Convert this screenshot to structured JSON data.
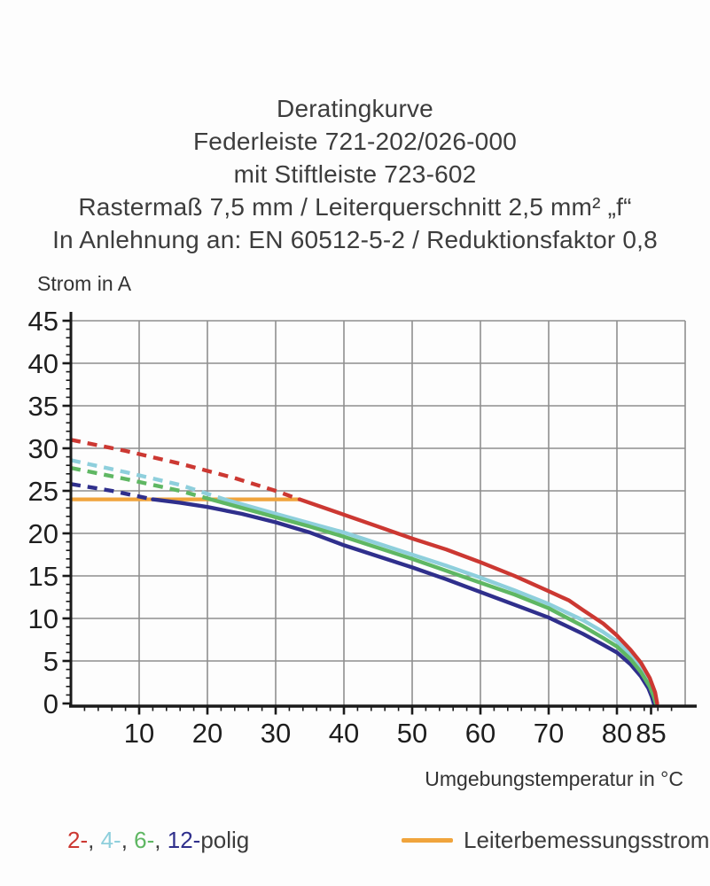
{
  "title": {
    "lines": [
      "Deratingkurve",
      "Federleiste 721-202/026-000",
      "mit Stiftleiste 723-602",
      "Rastermaß 7,5 mm / Leiterquerschnitt 2,5 mm² „f“",
      "In Anlehnung an: EN 60512-5-2 / Reduktionsfaktor 0,8"
    ]
  },
  "chart_data": {
    "type": "line",
    "title": "Deratingkurve",
    "xlabel": "Umgebungstemperatur in °C",
    "ylabel": "Strom in A",
    "xlim": [
      0,
      90
    ],
    "ylim": [
      0,
      45
    ],
    "grid": true,
    "x_major_ticks": [
      10,
      20,
      30,
      40,
      50,
      60,
      70,
      80,
      85
    ],
    "x_gridlines": [
      10,
      20,
      30,
      40,
      50,
      60,
      70,
      80,
      90
    ],
    "y_major_ticks": [
      0,
      5,
      10,
      15,
      20,
      25,
      30,
      35,
      40,
      45
    ],
    "x_minor_step": 2,
    "x_minor_max": 88,
    "y_minor_step": 1,
    "rated_line": {
      "label": "Leiterbemessungsstrom",
      "value": 24,
      "x_start": 0,
      "x_end": 33.5,
      "color": "#f0a43c"
    },
    "series": [
      {
        "name": "12-polig",
        "color": "#2f2f8c",
        "dashed": [
          [
            0,
            25.8
          ],
          [
            6,
            25.0
          ],
          [
            12,
            24
          ]
        ],
        "solid": [
          [
            12,
            24
          ],
          [
            16,
            23.6
          ],
          [
            20,
            23.1
          ],
          [
            25,
            22.3
          ],
          [
            30,
            21.3
          ],
          [
            35,
            20.1
          ],
          [
            40,
            18.6
          ],
          [
            45,
            17.3
          ],
          [
            50,
            16.0
          ],
          [
            55,
            14.6
          ],
          [
            60,
            13.1
          ],
          [
            65,
            11.6
          ],
          [
            70,
            10.1
          ],
          [
            75,
            8.2
          ],
          [
            78,
            6.9
          ],
          [
            80,
            6.0
          ],
          [
            82,
            4.6
          ],
          [
            83.5,
            3.2
          ],
          [
            84.6,
            1.8
          ],
          [
            85.1,
            0.8
          ],
          [
            85.4,
            0
          ]
        ]
      },
      {
        "name": "4-polig",
        "color": "#8ecfdc",
        "dashed": [
          [
            0,
            28.6
          ],
          [
            8,
            27.2
          ],
          [
            16,
            25.7
          ],
          [
            22.5,
            24
          ]
        ],
        "solid": [
          [
            22.5,
            24
          ],
          [
            30,
            22.3
          ],
          [
            35,
            21.2
          ],
          [
            40,
            20.1
          ],
          [
            45,
            18.8
          ],
          [
            50,
            17.5
          ],
          [
            55,
            16.2
          ],
          [
            60,
            14.8
          ],
          [
            65,
            13.3
          ],
          [
            70,
            11.7
          ],
          [
            75,
            9.8
          ],
          [
            78,
            8.4
          ],
          [
            80,
            7.3
          ],
          [
            82,
            5.7
          ],
          [
            83.5,
            4.2
          ],
          [
            84.8,
            2.4
          ],
          [
            85.5,
            1.0
          ],
          [
            85.8,
            0
          ]
        ]
      },
      {
        "name": "6-polig",
        "color": "#5fb763",
        "dashed": [
          [
            0,
            27.7
          ],
          [
            8,
            26.4
          ],
          [
            16,
            25.0
          ],
          [
            20.5,
            24
          ]
        ],
        "solid": [
          [
            20.5,
            24
          ],
          [
            30,
            21.9
          ],
          [
            35,
            20.8
          ],
          [
            40,
            19.6
          ],
          [
            45,
            18.3
          ],
          [
            50,
            17.0
          ],
          [
            55,
            15.6
          ],
          [
            60,
            14.2
          ],
          [
            65,
            12.8
          ],
          [
            70,
            11.2
          ],
          [
            75,
            9.1
          ],
          [
            78,
            7.7
          ],
          [
            80,
            6.7
          ],
          [
            82,
            5.2
          ],
          [
            83.5,
            3.7
          ],
          [
            84.8,
            2.0
          ],
          [
            85.4,
            0.8
          ],
          [
            85.7,
            0
          ]
        ]
      },
      {
        "name": "2-polig",
        "color": "#cc3832",
        "dashed": [
          [
            0,
            31
          ],
          [
            8,
            29.7
          ],
          [
            16,
            28.2
          ],
          [
            24,
            26.5
          ],
          [
            30,
            25.0
          ],
          [
            33.5,
            24
          ]
        ],
        "solid": [
          [
            33.5,
            24
          ],
          [
            40,
            22.2
          ],
          [
            45,
            20.8
          ],
          [
            50,
            19.4
          ],
          [
            55,
            18.1
          ],
          [
            60,
            16.6
          ],
          [
            65,
            15.0
          ],
          [
            70,
            13.2
          ],
          [
            73,
            12.1
          ],
          [
            75,
            11.0
          ],
          [
            78,
            9.4
          ],
          [
            80,
            8.0
          ],
          [
            82,
            6.3
          ],
          [
            83.5,
            4.8
          ],
          [
            84.8,
            3.0
          ],
          [
            85.6,
            1.3
          ],
          [
            85.9,
            0
          ]
        ]
      }
    ]
  },
  "legend": {
    "poles": [
      {
        "text": "2-",
        "color": "#cc3832"
      },
      {
        "text": "4-",
        "color": "#8ecfdc"
      },
      {
        "text": "6-",
        "color": "#5fb763"
      },
      {
        "text": "12-",
        "color": "#2f2f8c"
      }
    ],
    "poles_separator": ", ",
    "poles_suffix": "polig",
    "rated_label": "Leiterbemessungsstrom",
    "rated_color": "#f0a43c"
  },
  "colors": {
    "grid": "#8f8f8f",
    "axis": "#1a1a1a",
    "tick_label": "#1e1e1e",
    "text": "#3d3d3d"
  }
}
